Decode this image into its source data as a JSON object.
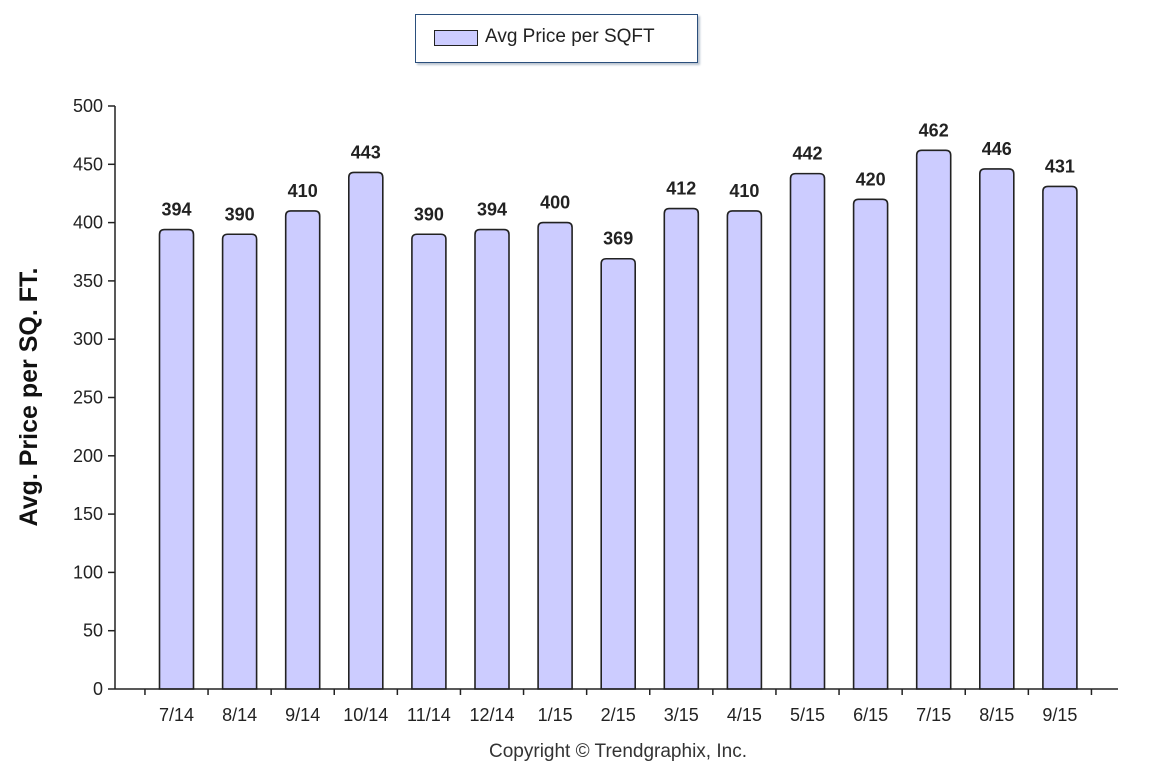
{
  "chart_data": {
    "type": "bar",
    "categories": [
      "7/14",
      "8/14",
      "9/14",
      "10/14",
      "11/14",
      "12/14",
      "1/15",
      "2/15",
      "3/15",
      "4/15",
      "5/15",
      "6/15",
      "7/15",
      "8/15",
      "9/15"
    ],
    "series": [
      {
        "name": "Avg Price per SQFT",
        "values": [
          394,
          390,
          410,
          443,
          390,
          394,
          400,
          369,
          412,
          410,
          442,
          420,
          462,
          446,
          431
        ]
      }
    ],
    "ylabel": "Avg. Price per SQ. FT.",
    "xlabel": "",
    "ylim": [
      0,
      500
    ],
    "yticks": [
      0,
      50,
      100,
      150,
      200,
      250,
      300,
      350,
      400,
      450,
      500
    ],
    "grid": false,
    "legend_position": "top-center",
    "data_labels": true,
    "colors": {
      "bar_fill": "#ccccff",
      "bar_stroke": "#222222"
    }
  },
  "footer": {
    "copyright": "Copyright © Trendgraphix, Inc."
  }
}
